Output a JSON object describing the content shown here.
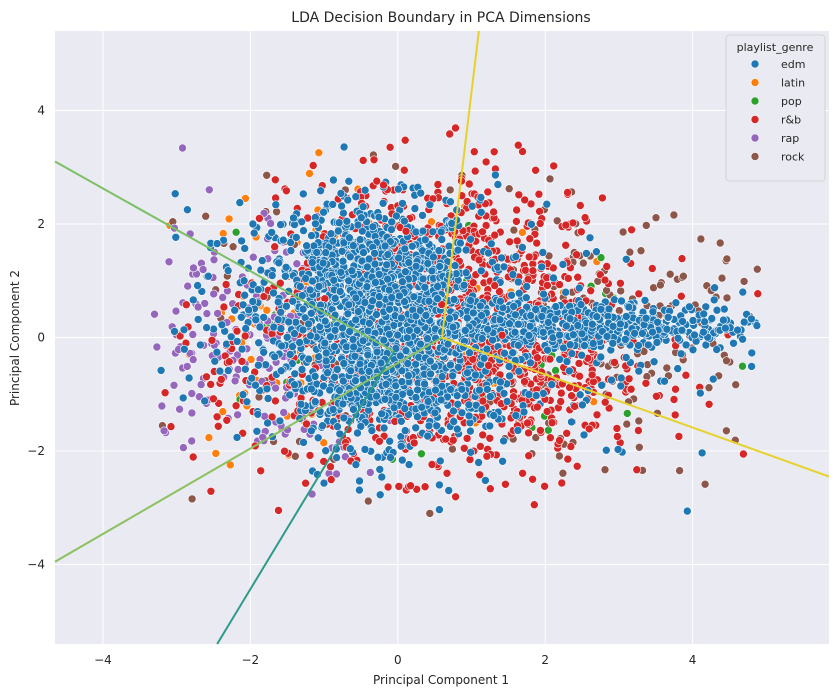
{
  "chart_data": {
    "type": "scatter",
    "title": "LDA Decision Boundary in PCA Dimensions",
    "xlabel": "Principal Component 1",
    "ylabel": "Principal Component 2",
    "xlim": [
      -4.65,
      5.85
    ],
    "ylim": [
      -5.4,
      5.4
    ],
    "xticks": [
      -4,
      -2,
      0,
      2,
      4
    ],
    "yticks": [
      -4,
      -2,
      0,
      2,
      4
    ],
    "grid": true,
    "background": "#eaeaf2",
    "legend": {
      "title": "playlist_genre",
      "placement": "top-right",
      "entries": [
        {
          "name": "edm",
          "color": "#1f77b4"
        },
        {
          "name": "latin",
          "color": "#ff7f0e"
        },
        {
          "name": "pop",
          "color": "#2ca02c"
        },
        {
          "name": "r&b",
          "color": "#d62728"
        },
        {
          "name": "rap",
          "color": "#9467bd"
        },
        {
          "name": "rock",
          "color": "#8c564b"
        }
      ]
    },
    "series": [
      {
        "name": "edm",
        "color": "#1f77b4",
        "clusters": [
          {
            "cx": -0.4,
            "cy": 0.9,
            "sx": 0.75,
            "sy": 0.75,
            "n": 900
          },
          {
            "cx": -0.2,
            "cy": -0.8,
            "sx": 0.7,
            "sy": 0.55,
            "n": 500
          },
          {
            "cx": 2.3,
            "cy": 0.2,
            "sx": 1.5,
            "sy": 0.22,
            "n": 650
          },
          {
            "cx": 0.3,
            "cy": 0.0,
            "sx": 1.6,
            "sy": 1.2,
            "n": 380
          }
        ]
      },
      {
        "name": "latin",
        "color": "#ff7f0e",
        "clusters": [
          {
            "cx": -0.5,
            "cy": 0.3,
            "sx": 1.3,
            "sy": 1.2,
            "n": 150
          }
        ]
      },
      {
        "name": "pop",
        "color": "#2ca02c",
        "clusters": [
          {
            "cx": 0.3,
            "cy": 0.2,
            "sx": 1.7,
            "sy": 1.2,
            "n": 60
          }
        ]
      },
      {
        "name": "r&b",
        "color": "#d62728",
        "clusters": [
          {
            "cx": 1.5,
            "cy": -0.5,
            "sx": 1.0,
            "sy": 0.9,
            "n": 600
          },
          {
            "cx": 0.6,
            "cy": 1.5,
            "sx": 1.0,
            "sy": 0.8,
            "n": 350
          },
          {
            "cx": -0.8,
            "cy": -0.6,
            "sx": 1.3,
            "sy": 0.9,
            "n": 200
          }
        ]
      },
      {
        "name": "rap",
        "color": "#9467bd",
        "clusters": [
          {
            "cx": -1.8,
            "cy": 0.0,
            "sx": 0.9,
            "sy": 1.1,
            "n": 230
          }
        ]
      },
      {
        "name": "rock",
        "color": "#8c564b",
        "clusters": [
          {
            "cx": 2.8,
            "cy": 0.0,
            "sx": 1.3,
            "sy": 1.0,
            "n": 180
          },
          {
            "cx": -0.2,
            "cy": 0.3,
            "sx": 1.6,
            "sy": 1.3,
            "n": 120
          }
        ]
      }
    ],
    "boundaries": [
      {
        "pair": "edm / rap",
        "color": "#7cc066",
        "x": [
          -4.65,
          -0.05
        ],
        "y": [
          3.1,
          -0.25
        ]
      },
      {
        "pair": "edm / latin",
        "color": "#8cc060",
        "x": [
          -4.65,
          0.6
        ],
        "y": [
          -3.95,
          0.0
        ]
      },
      {
        "pair": "edm / r&b",
        "color": "#2e9a88",
        "x": [
          -2.45,
          -0.05
        ],
        "y": [
          -5.4,
          -0.25
        ]
      },
      {
        "pair": "edm / rock",
        "color": "#e6d22a",
        "x": [
          0.6,
          5.85
        ],
        "y": [
          0.0,
          -2.45
        ]
      },
      {
        "pair": "edm / pop",
        "color": "#e6d22a",
        "x": [
          0.6,
          1.1
        ],
        "y": [
          0.0,
          5.4
        ]
      }
    ]
  }
}
